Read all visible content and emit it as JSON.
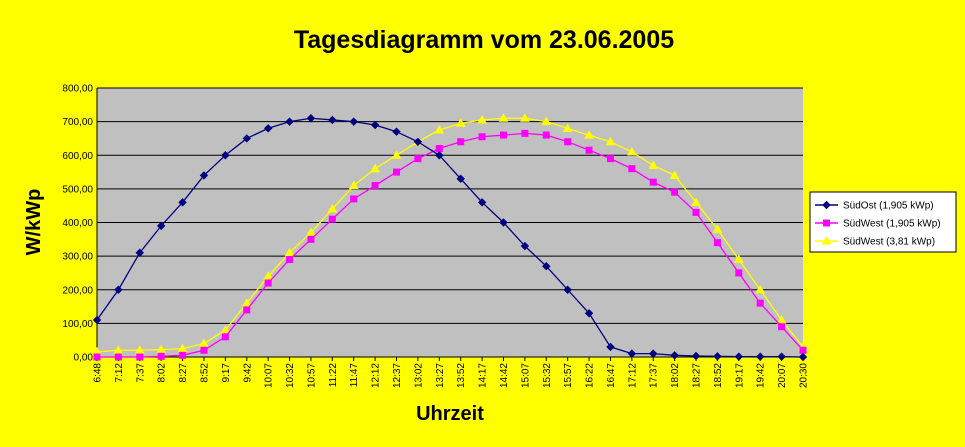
{
  "chart_data": {
    "type": "line",
    "title": "Tagesdiagramm vom 23.06.2005",
    "xlabel": "Uhrzeit",
    "ylabel": "W/kWp",
    "ylim": [
      0,
      800
    ],
    "y_ticks": [
      "0,00",
      "100,00",
      "200,00",
      "300,00",
      "400,00",
      "500,00",
      "600,00",
      "700,00",
      "800,00"
    ],
    "x_tick_labels": [
      "6:48",
      "7:12",
      "7:37",
      "8:02",
      "8:27",
      "8:52",
      "9:17",
      "9:42",
      "10:07",
      "10:32",
      "10:57",
      "11:22",
      "11:47",
      "12:12",
      "12:37",
      "13:02",
      "13:27",
      "13:52",
      "14:17",
      "14:42",
      "15:07",
      "15:32",
      "15:57",
      "16:22",
      "16:47",
      "17:12",
      "17:37",
      "18:02",
      "18:27",
      "18:52",
      "19:17",
      "19:42",
      "20:07",
      "20:30"
    ],
    "grid": "horizontal",
    "legend_position": "right",
    "series": [
      {
        "name": "SüdOst (1,905 kWp)",
        "color": "#000080",
        "marker": "diamond",
        "values": [
          110,
          200,
          310,
          390,
          460,
          540,
          600,
          650,
          680,
          700,
          710,
          705,
          700,
          690,
          670,
          640,
          600,
          530,
          460,
          400,
          330,
          270,
          200,
          130,
          30,
          10,
          10,
          5,
          3,
          2,
          1,
          1,
          1,
          0
        ]
      },
      {
        "name": "SüdWest (1,905 kWp)",
        "color": "#FF00FF",
        "marker": "square",
        "values": [
          0,
          0,
          0,
          2,
          5,
          20,
          60,
          140,
          220,
          290,
          350,
          410,
          470,
          510,
          550,
          590,
          620,
          640,
          655,
          660,
          665,
          660,
          640,
          615,
          590,
          560,
          520,
          490,
          430,
          340,
          250,
          160,
          90,
          20
        ]
      },
      {
        "name": "SüdWest (3,81 kWp)",
        "color": "#FFFF00",
        "marker": "triangle",
        "values": [
          15,
          20,
          20,
          22,
          25,
          40,
          80,
          160,
          240,
          310,
          370,
          440,
          510,
          560,
          600,
          640,
          675,
          695,
          705,
          710,
          710,
          700,
          680,
          660,
          640,
          610,
          570,
          540,
          460,
          380,
          290,
          200,
          110,
          30
        ]
      }
    ]
  }
}
